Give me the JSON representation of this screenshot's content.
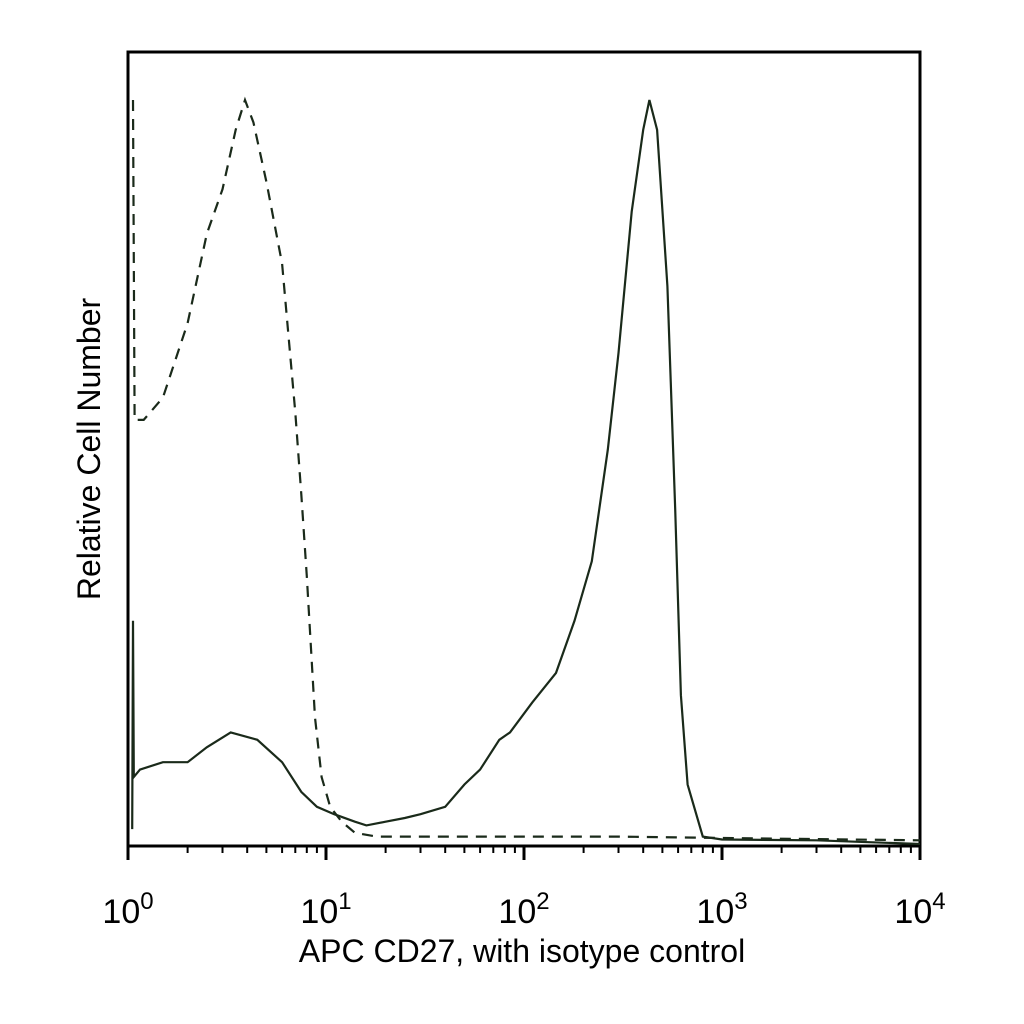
{
  "chart_data": {
    "type": "line",
    "xlabel": "APC CD27, with isotype control",
    "ylabel": "Relative Cell Number",
    "x_scale": "log",
    "xlim": [
      1,
      10000
    ],
    "ylim": [
      0,
      100
    ],
    "grid": false,
    "x_ticks": [
      {
        "value": 1,
        "base": "10",
        "exp": "0"
      },
      {
        "value": 10,
        "base": "10",
        "exp": "1"
      },
      {
        "value": 100,
        "base": "10",
        "exp": "2"
      },
      {
        "value": 1000,
        "base": "10",
        "exp": "3"
      },
      {
        "value": 10000,
        "base": "10",
        "exp": "4"
      }
    ],
    "series": [
      {
        "style": "solid",
        "color": "#1a2a1a",
        "points": [
          [
            1.05,
            2
          ],
          [
            1.06,
            30
          ],
          [
            1.07,
            9
          ],
          [
            1.15,
            10
          ],
          [
            1.5,
            11
          ],
          [
            2,
            11
          ],
          [
            2.5,
            13
          ],
          [
            3.3,
            15
          ],
          [
            4.5,
            14
          ],
          [
            6,
            11
          ],
          [
            7.5,
            7
          ],
          [
            9,
            5
          ],
          [
            11,
            4
          ],
          [
            14,
            3
          ],
          [
            16,
            2.5
          ],
          [
            20,
            3
          ],
          [
            25,
            3.5
          ],
          [
            30,
            4
          ],
          [
            40,
            5
          ],
          [
            50,
            8
          ],
          [
            60,
            10
          ],
          [
            75,
            14
          ],
          [
            85,
            15
          ],
          [
            110,
            19
          ],
          [
            145,
            23
          ],
          [
            180,
            30
          ],
          [
            220,
            38
          ],
          [
            265,
            53
          ],
          [
            300,
            66
          ],
          [
            350,
            85
          ],
          [
            400,
            96
          ],
          [
            430,
            100
          ],
          [
            470,
            96
          ],
          [
            530,
            75
          ],
          [
            580,
            45
          ],
          [
            620,
            20
          ],
          [
            670,
            8
          ],
          [
            800,
            1
          ],
          [
            1000,
            0.6
          ],
          [
            3000,
            0.5
          ],
          [
            10000,
            0
          ]
        ]
      },
      {
        "style": "dashed",
        "color": "#1a2a1a",
        "points": [
          [
            1.06,
            100
          ],
          [
            1.08,
            57
          ],
          [
            1.2,
            57
          ],
          [
            1.5,
            60
          ],
          [
            2,
            70
          ],
          [
            2.5,
            82
          ],
          [
            3,
            88
          ],
          [
            3.5,
            96
          ],
          [
            3.9,
            100
          ],
          [
            4.3,
            97
          ],
          [
            5,
            89
          ],
          [
            6,
            78
          ],
          [
            7,
            58
          ],
          [
            7.5,
            47
          ],
          [
            8,
            36
          ],
          [
            8.8,
            17
          ],
          [
            9.5,
            9
          ],
          [
            10.5,
            5
          ],
          [
            12,
            3
          ],
          [
            14,
            1.5
          ],
          [
            18,
            1
          ],
          [
            100,
            1
          ],
          [
            300,
            1
          ],
          [
            1000,
            0.8
          ],
          [
            10000,
            0.5
          ]
        ]
      }
    ]
  }
}
